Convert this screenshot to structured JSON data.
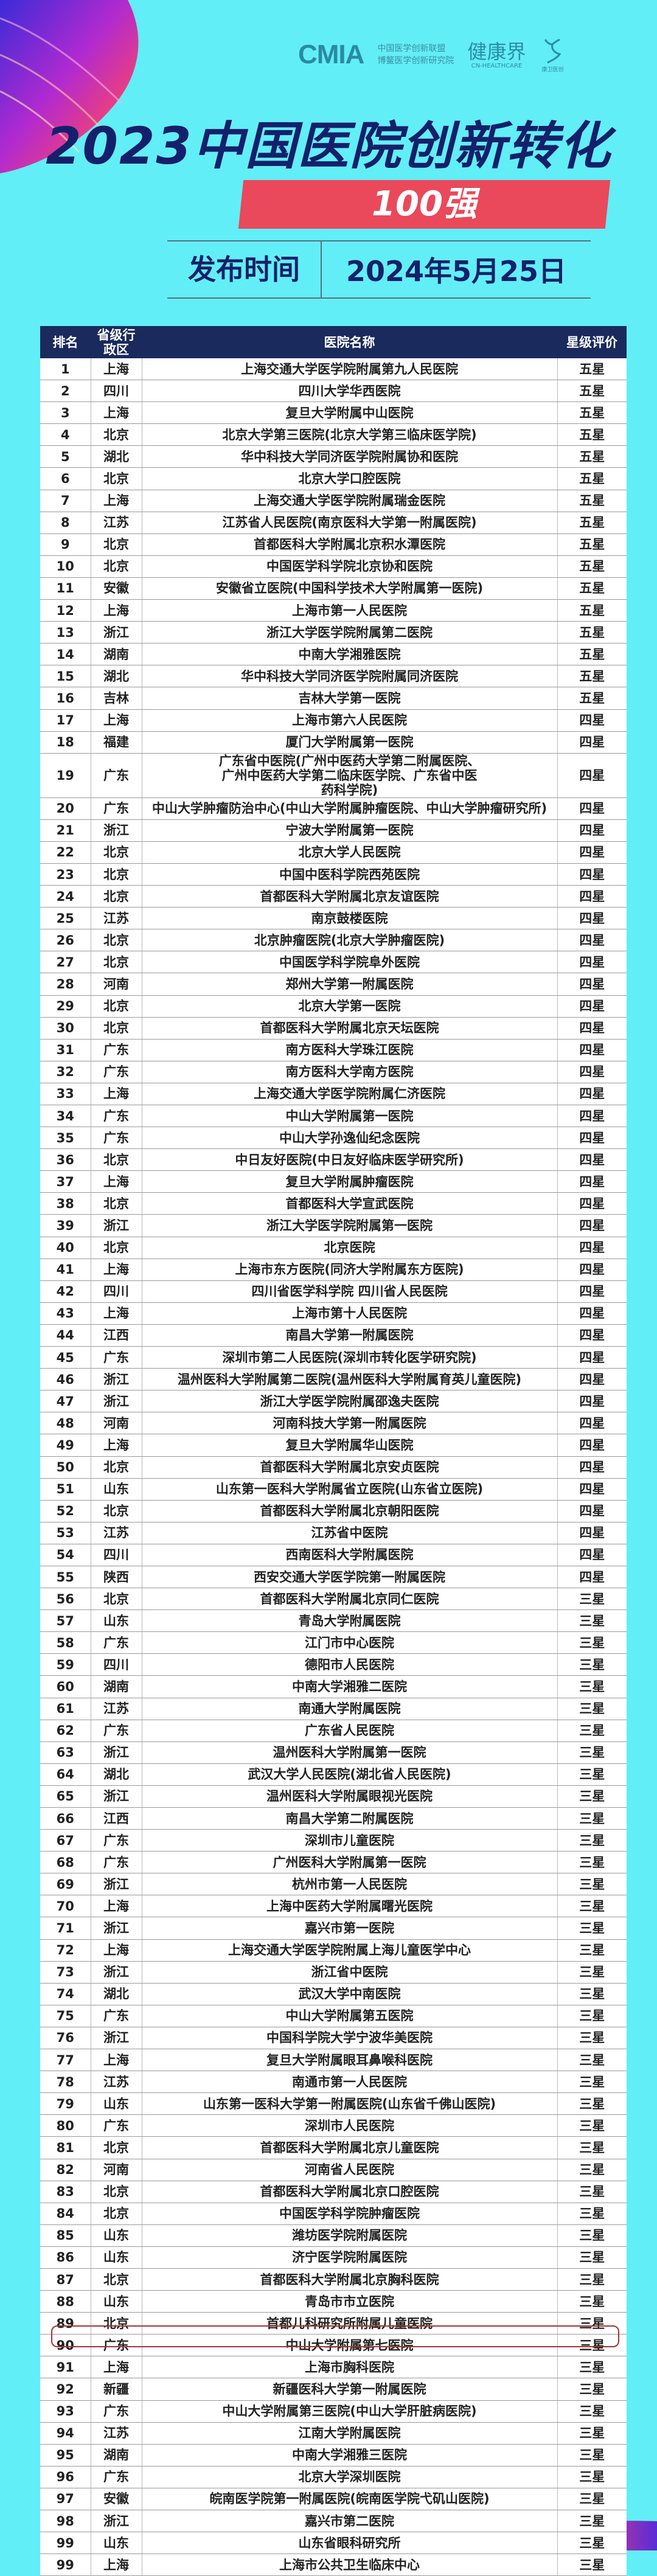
{
  "logos": {
    "cmia": "CMIA",
    "cmia_line1": "中国医学创新联盟",
    "cmia_line2": "博鳌医学创新研究院",
    "jkj": "健康界",
    "jkj_en": "CN-HEALTHCARE",
    "deer": "康卫医创"
  },
  "title": "2023中国医院创新转化",
  "subtitle": "100强",
  "release": {
    "label": "发布时间",
    "date": "2024年5月25日"
  },
  "colors": {
    "background": "#62eef6",
    "title": "#14206b",
    "banner": "#e9495b",
    "header": "#1a2a5c",
    "highlight": "#a2343c"
  },
  "table": {
    "headers": [
      "排名",
      "省级行政区",
      "医院名称",
      "星级评价"
    ],
    "highlighted_rank": "92",
    "rows": [
      [
        "1",
        "上海",
        "上海交通大学医学院附属第九人民医院",
        "五星"
      ],
      [
        "2",
        "四川",
        "四川大学华西医院",
        "五星"
      ],
      [
        "3",
        "上海",
        "复旦大学附属中山医院",
        "五星"
      ],
      [
        "4",
        "北京",
        "北京大学第三医院(北京大学第三临床医学院)",
        "五星"
      ],
      [
        "5",
        "湖北",
        "华中科技大学同济医学院附属协和医院",
        "五星"
      ],
      [
        "6",
        "北京",
        "北京大学口腔医院",
        "五星"
      ],
      [
        "7",
        "上海",
        "上海交通大学医学院附属瑞金医院",
        "五星"
      ],
      [
        "8",
        "江苏",
        "江苏省人民医院(南京医科大学第一附属医院)",
        "五星"
      ],
      [
        "9",
        "北京",
        "首都医科大学附属北京积水潭医院",
        "五星"
      ],
      [
        "10",
        "北京",
        "中国医学科学院北京协和医院",
        "五星"
      ],
      [
        "11",
        "安徽",
        "安徽省立医院(中国科学技术大学附属第一医院)",
        "五星"
      ],
      [
        "12",
        "上海",
        "上海市第一人民医院",
        "五星"
      ],
      [
        "13",
        "浙江",
        "浙江大学医学院附属第二医院",
        "五星"
      ],
      [
        "14",
        "湖南",
        "中南大学湘雅医院",
        "五星"
      ],
      [
        "15",
        "湖北",
        "华中科技大学同济医学院附属同济医院",
        "五星"
      ],
      [
        "16",
        "吉林",
        "吉林大学第一医院",
        "五星"
      ],
      [
        "17",
        "上海",
        "上海市第六人民医院",
        "四星"
      ],
      [
        "18",
        "福建",
        "厦门大学附属第一医院",
        "四星"
      ],
      [
        "19",
        "广东",
        "广东省中医院(广州中医药大学第二附属医院、广州中医药大学第二临床医学院、广东省中医药科学院)",
        "四星"
      ],
      [
        "20",
        "广东",
        "中山大学肿瘤防治中心(中山大学附属肿瘤医院、中山大学肿瘤研究所)",
        "四星"
      ],
      [
        "21",
        "浙江",
        "宁波大学附属第一医院",
        "四星"
      ],
      [
        "22",
        "北京",
        "北京大学人民医院",
        "四星"
      ],
      [
        "23",
        "北京",
        "中国中医科学院西苑医院",
        "四星"
      ],
      [
        "24",
        "北京",
        "首都医科大学附属北京友谊医院",
        "四星"
      ],
      [
        "25",
        "江苏",
        "南京鼓楼医院",
        "四星"
      ],
      [
        "26",
        "北京",
        "北京肿瘤医院(北京大学肿瘤医院)",
        "四星"
      ],
      [
        "27",
        "北京",
        "中国医学科学院阜外医院",
        "四星"
      ],
      [
        "28",
        "河南",
        "郑州大学第一附属医院",
        "四星"
      ],
      [
        "29",
        "北京",
        "北京大学第一医院",
        "四星"
      ],
      [
        "30",
        "北京",
        "首都医科大学附属北京天坛医院",
        "四星"
      ],
      [
        "31",
        "广东",
        "南方医科大学珠江医院",
        "四星"
      ],
      [
        "32",
        "广东",
        "南方医科大学南方医院",
        "四星"
      ],
      [
        "33",
        "上海",
        "上海交通大学医学院附属仁济医院",
        "四星"
      ],
      [
        "34",
        "广东",
        "中山大学附属第一医院",
        "四星"
      ],
      [
        "35",
        "广东",
        "中山大学孙逸仙纪念医院",
        "四星"
      ],
      [
        "36",
        "北京",
        "中日友好医院(中日友好临床医学研究所)",
        "四星"
      ],
      [
        "37",
        "上海",
        "复旦大学附属肿瘤医院",
        "四星"
      ],
      [
        "38",
        "北京",
        "首都医科大学宣武医院",
        "四星"
      ],
      [
        "39",
        "浙江",
        "浙江大学医学院附属第一医院",
        "四星"
      ],
      [
        "40",
        "北京",
        "北京医院",
        "四星"
      ],
      [
        "41",
        "上海",
        "上海市东方医院(同济大学附属东方医院)",
        "四星"
      ],
      [
        "42",
        "四川",
        "四川省医学科学院 四川省人民医院",
        "四星"
      ],
      [
        "43",
        "上海",
        "上海市第十人民医院",
        "四星"
      ],
      [
        "44",
        "江西",
        "南昌大学第一附属医院",
        "四星"
      ],
      [
        "45",
        "广东",
        "深圳市第二人民医院(深圳市转化医学研究院)",
        "四星"
      ],
      [
        "46",
        "浙江",
        "温州医科大学附属第二医院(温州医科大学附属育英儿童医院)",
        "四星"
      ],
      [
        "47",
        "浙江",
        "浙江大学医学院附属邵逸夫医院",
        "四星"
      ],
      [
        "48",
        "河南",
        "河南科技大学第一附属医院",
        "四星"
      ],
      [
        "49",
        "上海",
        "复旦大学附属华山医院",
        "四星"
      ],
      [
        "50",
        "北京",
        "首都医科大学附属北京安贞医院",
        "四星"
      ],
      [
        "51",
        "山东",
        "山东第一医科大学附属省立医院(山东省立医院)",
        "四星"
      ],
      [
        "52",
        "北京",
        "首都医科大学附属北京朝阳医院",
        "四星"
      ],
      [
        "53",
        "江苏",
        "江苏省中医院",
        "四星"
      ],
      [
        "54",
        "四川",
        "西南医科大学附属医院",
        "四星"
      ],
      [
        "55",
        "陕西",
        "西安交通大学医学院第一附属医院",
        "四星"
      ],
      [
        "56",
        "北京",
        "首都医科大学附属北京同仁医院",
        "三星"
      ],
      [
        "57",
        "山东",
        "青岛大学附属医院",
        "三星"
      ],
      [
        "58",
        "广东",
        "江门市中心医院",
        "三星"
      ],
      [
        "59",
        "四川",
        "德阳市人民医院",
        "三星"
      ],
      [
        "60",
        "湖南",
        "中南大学湘雅二医院",
        "三星"
      ],
      [
        "61",
        "江苏",
        "南通大学附属医院",
        "三星"
      ],
      [
        "62",
        "广东",
        "广东省人民医院",
        "三星"
      ],
      [
        "63",
        "浙江",
        "温州医科大学附属第一医院",
        "三星"
      ],
      [
        "64",
        "湖北",
        "武汉大学人民医院(湖北省人民医院)",
        "三星"
      ],
      [
        "65",
        "浙江",
        "温州医科大学附属眼视光医院",
        "三星"
      ],
      [
        "66",
        "江西",
        "南昌大学第二附属医院",
        "三星"
      ],
      [
        "67",
        "广东",
        "深圳市儿童医院",
        "三星"
      ],
      [
        "68",
        "广东",
        "广州医科大学附属第一医院",
        "三星"
      ],
      [
        "69",
        "浙江",
        "杭州市第一人民医院",
        "三星"
      ],
      [
        "70",
        "上海",
        "上海中医药大学附属曙光医院",
        "三星"
      ],
      [
        "71",
        "浙江",
        "嘉兴市第一医院",
        "三星"
      ],
      [
        "72",
        "上海",
        "上海交通大学医学院附属上海儿童医学中心",
        "三星"
      ],
      [
        "73",
        "浙江",
        "浙江省中医院",
        "三星"
      ],
      [
        "74",
        "湖北",
        "武汉大学中南医院",
        "三星"
      ],
      [
        "75",
        "广东",
        "中山大学附属第五医院",
        "三星"
      ],
      [
        "76",
        "浙江",
        "中国科学院大学宁波华美医院",
        "三星"
      ],
      [
        "77",
        "上海",
        "复旦大学附属眼耳鼻喉科医院",
        "三星"
      ],
      [
        "78",
        "江苏",
        "南通市第一人民医院",
        "三星"
      ],
      [
        "79",
        "山东",
        "山东第一医科大学第一附属医院(山东省千佛山医院)",
        "三星"
      ],
      [
        "80",
        "广东",
        "深圳市人民医院",
        "三星"
      ],
      [
        "81",
        "北京",
        "首都医科大学附属北京儿童医院",
        "三星"
      ],
      [
        "82",
        "河南",
        "河南省人民医院",
        "三星"
      ],
      [
        "83",
        "北京",
        "首都医科大学附属北京口腔医院",
        "三星"
      ],
      [
        "84",
        "北京",
        "中国医学科学院肿瘤医院",
        "三星"
      ],
      [
        "85",
        "山东",
        "潍坊医学院附属医院",
        "三星"
      ],
      [
        "86",
        "山东",
        "济宁医学院附属医院",
        "三星"
      ],
      [
        "87",
        "北京",
        "首都医科大学附属北京胸科医院",
        "三星"
      ],
      [
        "88",
        "山东",
        "青岛市市立医院",
        "三星"
      ],
      [
        "89",
        "北京",
        "首都儿科研究所附属儿童医院",
        "三星"
      ],
      [
        "90",
        "广东",
        "中山大学附属第七医院",
        "三星"
      ],
      [
        "91",
        "上海",
        "上海市胸科医院",
        "三星"
      ],
      [
        "92",
        "新疆",
        "新疆医科大学第一附属医院",
        "三星"
      ],
      [
        "93",
        "广东",
        "中山大学附属第三医院(中山大学肝脏病医院)",
        "三星"
      ],
      [
        "94",
        "江苏",
        "江南大学附属医院",
        "三星"
      ],
      [
        "95",
        "湖南",
        "中南大学湘雅三医院",
        "三星"
      ],
      [
        "96",
        "广东",
        "北京大学深圳医院",
        "三星"
      ],
      [
        "97",
        "安徽",
        "皖南医学院第一附属医院(皖南医学院弋矶山医院)",
        "三星"
      ],
      [
        "98",
        "浙江",
        "嘉兴市第二医院",
        "三星"
      ],
      [
        "99",
        "山东",
        "山东省眼科研究所",
        "三星"
      ],
      [
        "99",
        "上海",
        "上海市公共卫生临床中心",
        "三星"
      ]
    ]
  }
}
